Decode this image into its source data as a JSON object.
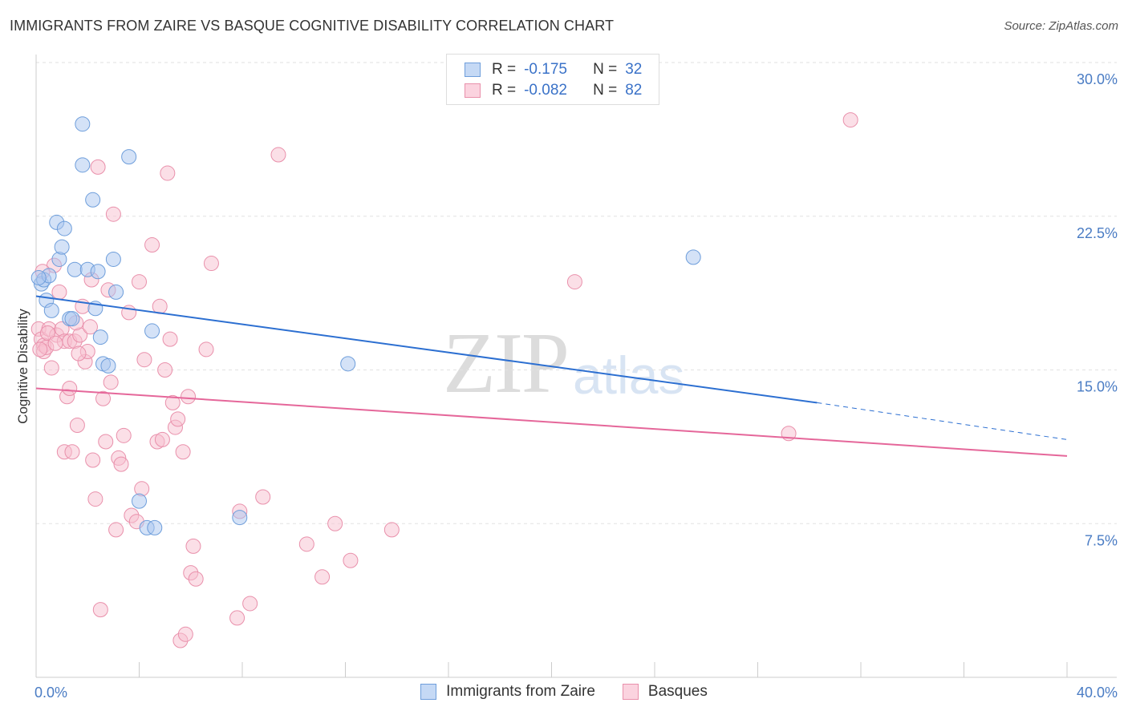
{
  "title": "IMMIGRANTS FROM ZAIRE VS BASQUE COGNITIVE DISABILITY CORRELATION CHART",
  "source": "Source: ZipAtlas.com",
  "watermark": {
    "zip": "ZIP",
    "atlas": "atlas"
  },
  "legend": {
    "rows": [
      {
        "r_label": "R =",
        "r_value": "-0.175",
        "n_label": "N =",
        "n_value": "32",
        "color": "#a9c6ef",
        "border": "#6e9edb"
      },
      {
        "r_label": "R =",
        "r_value": "-0.082",
        "n_label": "N =",
        "n_value": "82",
        "color": "#f7bfd0",
        "border": "#e990ab"
      }
    ]
  },
  "bottom_legend": {
    "zaire": "Immigrants from Zaire",
    "basques": "Basques"
  },
  "chart_data": {
    "type": "scatter",
    "xlabel": "",
    "ylabel": "Cognitive Disability",
    "xlim": [
      0,
      40
    ],
    "ylim": [
      0,
      31
    ],
    "x_tick_labels": [
      "0.0%",
      "40.0%"
    ],
    "y_ticks": [
      7.5,
      15.0,
      22.5,
      30.0
    ],
    "y_tick_labels": [
      "7.5%",
      "15.0%",
      "22.5%",
      "30.0%"
    ],
    "grid": true,
    "series": [
      {
        "name": "Immigrants from Zaire",
        "color": "#a9c6ef",
        "stroke": "#6e9edb",
        "trend": {
          "x0": 0,
          "y0": 18.6,
          "x1": 30.3,
          "y1": 13.4,
          "dash_to": 40,
          "dash_y": 11.6,
          "color": "#2c6fd1"
        },
        "points": [
          [
            0.2,
            19.2
          ],
          [
            0.3,
            19.4
          ],
          [
            0.4,
            18.4
          ],
          [
            0.5,
            19.6
          ],
          [
            0.6,
            17.9
          ],
          [
            0.8,
            22.2
          ],
          [
            0.9,
            20.4
          ],
          [
            1.1,
            21.9
          ],
          [
            1.3,
            17.5
          ],
          [
            1.5,
            19.9
          ],
          [
            1.8,
            25.0
          ],
          [
            1.8,
            27.0
          ],
          [
            2.0,
            19.9
          ],
          [
            2.2,
            23.3
          ],
          [
            2.3,
            18.0
          ],
          [
            2.5,
            16.6
          ],
          [
            2.6,
            15.3
          ],
          [
            2.8,
            15.2
          ],
          [
            3.0,
            20.4
          ],
          [
            3.1,
            18.8
          ],
          [
            3.6,
            25.4
          ],
          [
            4.0,
            8.6
          ],
          [
            4.3,
            7.3
          ],
          [
            4.5,
            16.9
          ],
          [
            4.6,
            7.3
          ],
          [
            7.9,
            7.8
          ],
          [
            12.1,
            15.3
          ],
          [
            25.5,
            20.5
          ],
          [
            1.0,
            21.0
          ],
          [
            0.1,
            19.5
          ],
          [
            1.4,
            17.5
          ],
          [
            2.4,
            19.8
          ]
        ]
      },
      {
        "name": "Basques",
        "color": "#f7bfd0",
        "stroke": "#e990ab",
        "trend": {
          "x0": 0,
          "y0": 14.1,
          "x1": 40,
          "y1": 10.8,
          "color": "#e5679a"
        },
        "points": [
          [
            0.1,
            17.0
          ],
          [
            0.2,
            16.5
          ],
          [
            0.3,
            16.2
          ],
          [
            0.3,
            15.9
          ],
          [
            0.4,
            16.1
          ],
          [
            0.5,
            17.0
          ],
          [
            0.6,
            15.1
          ],
          [
            0.7,
            20.1
          ],
          [
            0.8,
            16.7
          ],
          [
            0.9,
            18.8
          ],
          [
            1.0,
            17.0
          ],
          [
            1.1,
            16.4
          ],
          [
            1.1,
            11.0
          ],
          [
            1.2,
            13.7
          ],
          [
            1.3,
            16.4
          ],
          [
            1.3,
            14.1
          ],
          [
            1.4,
            11.0
          ],
          [
            1.5,
            16.4
          ],
          [
            1.6,
            12.3
          ],
          [
            1.7,
            16.7
          ],
          [
            1.8,
            18.1
          ],
          [
            1.9,
            15.4
          ],
          [
            2.0,
            15.9
          ],
          [
            2.1,
            17.1
          ],
          [
            2.2,
            10.6
          ],
          [
            2.3,
            8.7
          ],
          [
            2.4,
            24.9
          ],
          [
            2.5,
            3.3
          ],
          [
            2.6,
            13.6
          ],
          [
            2.7,
            11.5
          ],
          [
            2.8,
            18.9
          ],
          [
            2.9,
            14.4
          ],
          [
            3.0,
            22.6
          ],
          [
            3.1,
            7.2
          ],
          [
            3.2,
            10.7
          ],
          [
            3.3,
            10.4
          ],
          [
            3.4,
            11.8
          ],
          [
            3.6,
            17.8
          ],
          [
            3.7,
            7.9
          ],
          [
            3.9,
            7.6
          ],
          [
            4.0,
            19.3
          ],
          [
            4.1,
            9.2
          ],
          [
            4.2,
            15.5
          ],
          [
            4.5,
            21.1
          ],
          [
            4.7,
            11.5
          ],
          [
            4.8,
            18.1
          ],
          [
            4.9,
            11.6
          ],
          [
            5.0,
            15.0
          ],
          [
            5.1,
            24.6
          ],
          [
            5.2,
            16.5
          ],
          [
            5.3,
            13.4
          ],
          [
            5.4,
            12.2
          ],
          [
            5.5,
            12.6
          ],
          [
            5.6,
            1.8
          ],
          [
            5.7,
            11.0
          ],
          [
            5.8,
            2.1
          ],
          [
            5.9,
            13.7
          ],
          [
            6.0,
            5.1
          ],
          [
            6.1,
            6.4
          ],
          [
            6.2,
            4.8
          ],
          [
            6.6,
            16.0
          ],
          [
            6.8,
            20.2
          ],
          [
            7.8,
            2.9
          ],
          [
            7.9,
            8.1
          ],
          [
            8.3,
            3.6
          ],
          [
            8.8,
            8.8
          ],
          [
            9.4,
            25.5
          ],
          [
            10.5,
            6.5
          ],
          [
            11.1,
            4.9
          ],
          [
            11.6,
            7.5
          ],
          [
            12.2,
            5.7
          ],
          [
            13.8,
            7.2
          ],
          [
            20.9,
            19.3
          ],
          [
            29.2,
            11.9
          ],
          [
            31.6,
            27.2
          ],
          [
            0.15,
            16.0
          ],
          [
            0.45,
            16.8
          ],
          [
            1.55,
            17.3
          ],
          [
            0.25,
            19.8
          ],
          [
            2.15,
            19.4
          ],
          [
            0.75,
            16.3
          ],
          [
            1.65,
            15.8
          ]
        ]
      }
    ]
  }
}
